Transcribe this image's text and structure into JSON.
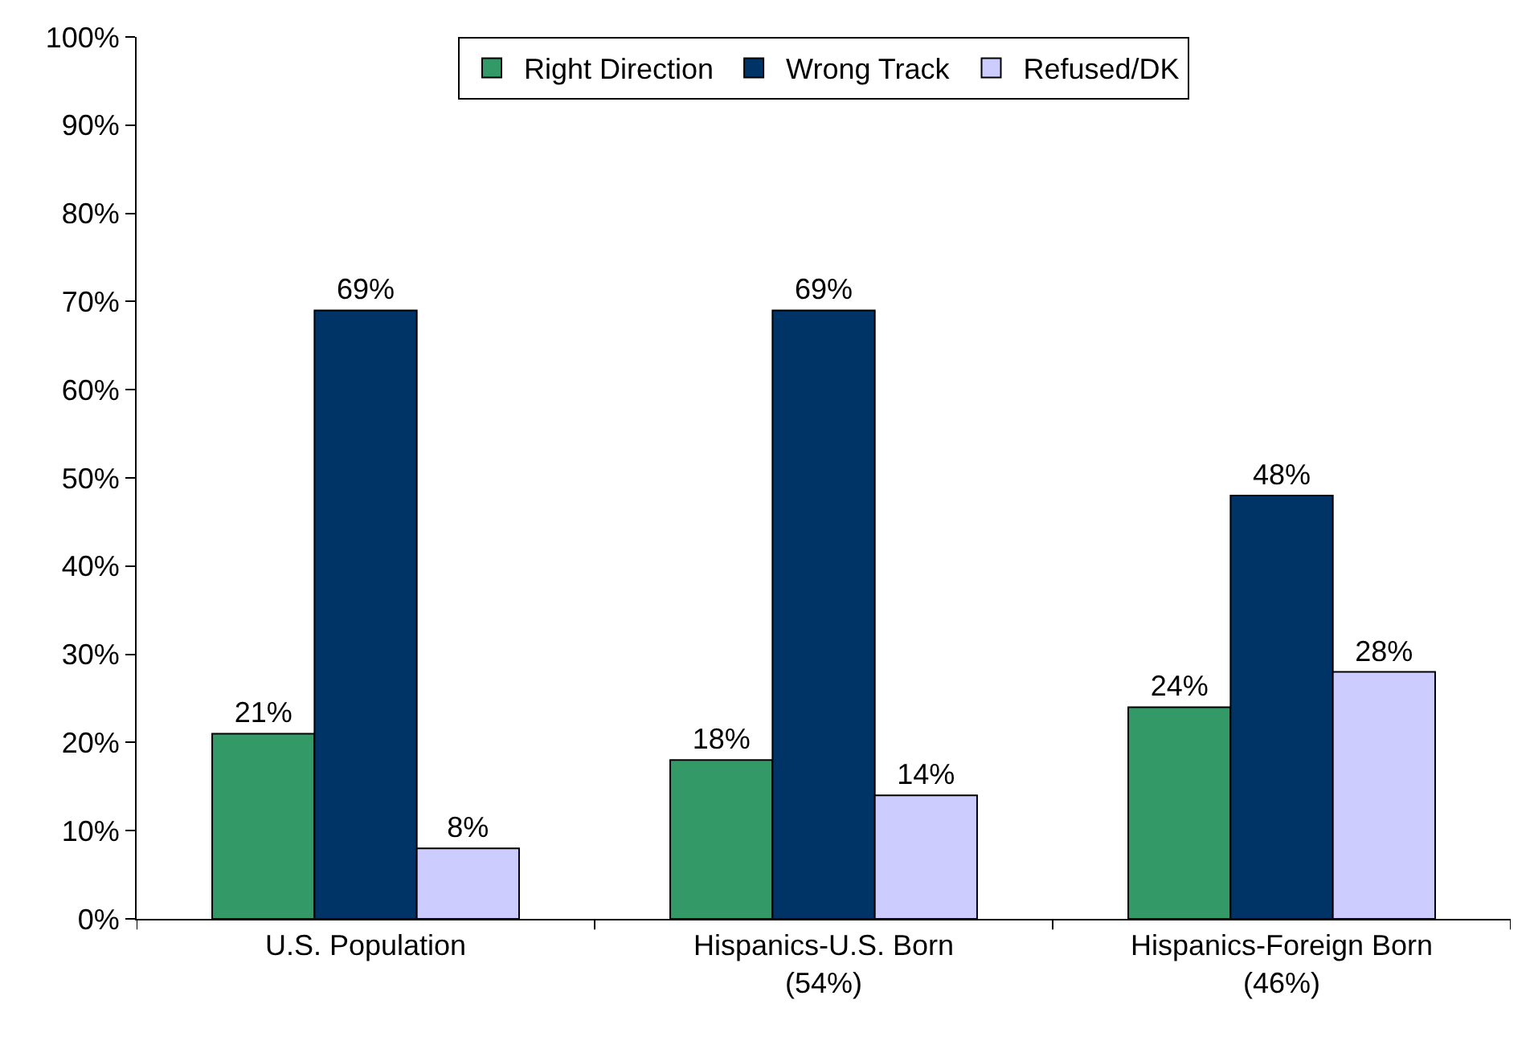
{
  "chart_data": {
    "type": "bar",
    "categories": [
      "U.S. Population",
      "Hispanics-U.S. Born\n(54%)",
      "Hispanics-Foreign Born\n(46%)"
    ],
    "series": [
      {
        "name": "Right Direction",
        "color": "#339966",
        "values": [
          21,
          18,
          24
        ],
        "value_labels": [
          "21%",
          "18%",
          "24%"
        ]
      },
      {
        "name": "Wrong Track",
        "color": "#003366",
        "values": [
          69,
          69,
          48
        ],
        "value_labels": [
          "69%",
          "69%",
          "48%"
        ]
      },
      {
        "name": "Refused/DK",
        "color": "#ccccff",
        "values": [
          8,
          14,
          28
        ],
        "value_labels": [
          "8%",
          "14%",
          "28%"
        ]
      }
    ],
    "ylim": [
      0,
      100
    ],
    "yticks": [
      {
        "value": 0,
        "label": "0%"
      },
      {
        "value": 10,
        "label": "10%"
      },
      {
        "value": 20,
        "label": "20%"
      },
      {
        "value": 30,
        "label": "30%"
      },
      {
        "value": 40,
        "label": "40%"
      },
      {
        "value": 50,
        "label": "50%"
      },
      {
        "value": 60,
        "label": "60%"
      },
      {
        "value": 70,
        "label": "70%"
      },
      {
        "value": 80,
        "label": "80%"
      },
      {
        "value": 90,
        "label": "90%"
      },
      {
        "value": 100,
        "label": "100%"
      }
    ],
    "grid": false,
    "legend": "top"
  }
}
